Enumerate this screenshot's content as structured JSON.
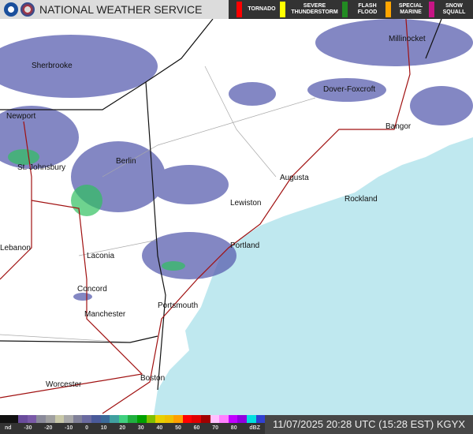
{
  "header": {
    "title": "NATIONAL WEATHER SERVICE",
    "warnings": [
      {
        "label": "TORNADO",
        "color": "#ff0000"
      },
      {
        "label": "SEVERE THUNDERSTORM",
        "color": "#ffff00"
      },
      {
        "label": "FLASH FLOOD",
        "color": "#228b22"
      },
      {
        "label": "SPECIAL MARINE",
        "color": "#ffa500"
      },
      {
        "label": "SNOW SQUALL",
        "color": "#c71585"
      }
    ]
  },
  "map": {
    "cities": [
      "Millinocket",
      "Sherbrooke",
      "Dover-Foxcroft",
      "Newport",
      "Bangor",
      "St. Johnsbury",
      "Berlin",
      "Augusta",
      "Rockland",
      "Lewiston",
      "Portland",
      "Lebanon",
      "Laconia",
      "Concord",
      "Manchester",
      "Portsmouth",
      "Worcester",
      "Boston"
    ],
    "colors": {
      "land": "#ffffff",
      "ocean": "#bfe8ef",
      "radar": "#5a5fb0"
    }
  },
  "legend": {
    "ticks": [
      "nd",
      "-30",
      "-20",
      "-10",
      "0",
      "10",
      "20",
      "30",
      "40",
      "50",
      "60",
      "70",
      "80",
      "dBZ"
    ],
    "colors": [
      "#111",
      "#111",
      "#6a4c9c",
      "#7a5aa8",
      "#8a8a9a",
      "#a0a0a0",
      "#c8c8a8",
      "#a8a8a8",
      "#808098",
      "#6a6aa0",
      "#4a5a9a",
      "#3a6a9a",
      "#40a0a0",
      "#40d080",
      "#20b040",
      "#00a000",
      "#80c000",
      "#e8d000",
      "#f0c000",
      "#ffa000",
      "#ff0000",
      "#e00000",
      "#a00000",
      "#ffc0ff",
      "#ff80ff",
      "#c000ff",
      "#9000e0",
      "#00e0e0",
      "#3040d0"
    ],
    "timestamp": "11/07/2025 20:28 UTC (15:28 EST) KGYX"
  }
}
